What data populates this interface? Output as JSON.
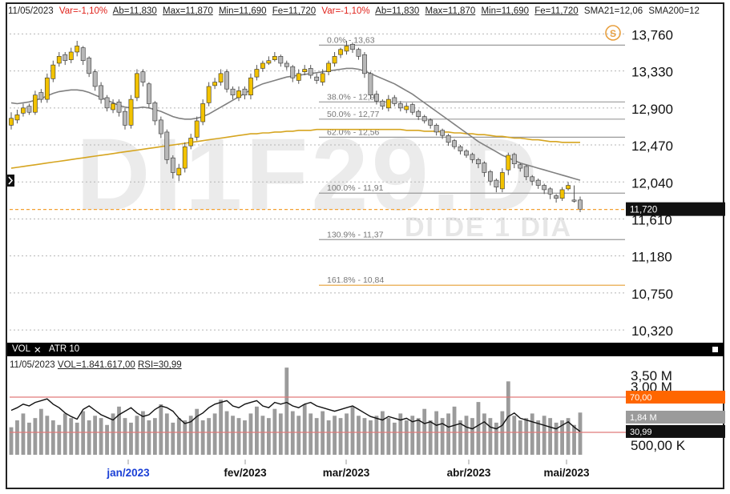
{
  "header": {
    "date": "11/05/2023",
    "var1": "Var=-1,10%",
    "ab1": "Ab=11,830",
    "max1": "Max=11,870",
    "min1": "Min=11,690",
    "fe1": "Fe=11,720",
    "var2": "Var=-1,10%",
    "ab2": "Ab=11,830",
    "max2": "Max=11,870",
    "min2": "Min=11,690",
    "fe2": "Fe=11,720",
    "sma21": "SMA21=12,06",
    "sma200": "SMA200=12"
  },
  "watermark": {
    "symbol": "DI1F29.D",
    "subtitle": "DI DE 1 DIA"
  },
  "colors": {
    "up": "#f2c200",
    "down": "#b8b8b8",
    "sma21": "#808080",
    "sma200": "#d6a520",
    "last_price": "#f3a132",
    "overbought": "#ff6600",
    "oversold_line": "#e07a7a"
  },
  "sub_panel": {
    "tab_vol": "VOL",
    "tab_close": "✕",
    "tab_atr": "ATR 10",
    "info_date": "11/05/2023",
    "info_vol": "VOL=1.841.617,00",
    "info_rsi": "RSI=30,99"
  },
  "chart_data": [
    {
      "type": "candlestick",
      "y_ticks": [
        "13,760",
        "13,330",
        "12,900",
        "12,470",
        "12,040",
        "11,610",
        "11,180",
        "10,750",
        "10,320"
      ],
      "ylim": [
        10.2,
        13.95
      ],
      "last_price_label": "11,720",
      "x_labels": [
        "jan/2023",
        "fev/2023",
        "mar/2023",
        "abr/2023",
        "mai/2023"
      ],
      "fibonacci": [
        {
          "label": "0.0% - 13,63",
          "value": 13.63
        },
        {
          "label": "38.0% - 12,97",
          "value": 12.97
        },
        {
          "label": "50.0% - 12,77",
          "value": 12.77
        },
        {
          "label": "62.0% - 12,56",
          "value": 12.56
        },
        {
          "label": "100.0% - 11,91",
          "value": 11.91
        },
        {
          "label": "130.9% - 11,37",
          "value": 11.37
        },
        {
          "label": "161.8% - 10,84",
          "value": 10.84
        }
      ],
      "close": [
        12.78,
        12.82,
        12.9,
        12.85,
        13.05,
        13.0,
        13.25,
        13.4,
        13.5,
        13.45,
        13.55,
        13.62,
        13.45,
        13.3,
        13.15,
        13.0,
        12.9,
        12.95,
        12.85,
        12.7,
        13.0,
        13.3,
        13.2,
        12.95,
        12.75,
        12.6,
        12.3,
        12.15,
        12.2,
        12.45,
        12.55,
        12.75,
        12.95,
        13.15,
        13.2,
        13.3,
        13.12,
        13.05,
        13.1,
        13.05,
        13.25,
        13.35,
        13.42,
        13.45,
        13.5,
        13.42,
        13.38,
        13.25,
        13.3,
        13.35,
        13.28,
        13.22,
        13.3,
        13.42,
        13.5,
        13.58,
        13.62,
        13.58,
        13.5,
        13.3,
        13.05,
        12.98,
        12.92,
        13.0,
        12.95,
        12.9,
        12.92,
        12.85,
        12.8,
        12.75,
        12.7,
        12.62,
        12.58,
        12.5,
        12.45,
        12.4,
        12.35,
        12.3,
        12.25,
        12.15,
        12.05,
        11.98,
        12.15,
        12.35,
        12.25,
        12.2,
        12.1,
        12.05,
        12.0,
        11.95,
        11.9,
        11.85,
        11.95,
        12.0,
        11.82,
        11.72
      ],
      "open": [
        12.7,
        12.76,
        12.84,
        12.92,
        12.85,
        13.08,
        13.0,
        13.24,
        13.42,
        13.52,
        13.46,
        13.55,
        13.6,
        13.48,
        13.32,
        13.16,
        13.02,
        12.88,
        12.97,
        12.86,
        12.7,
        13.02,
        13.32,
        13.18,
        12.96,
        12.76,
        12.62,
        12.32,
        12.12,
        12.2,
        12.46,
        12.56,
        12.74,
        12.96,
        13.16,
        13.2,
        13.32,
        13.12,
        13.02,
        13.12,
        13.05,
        13.26,
        13.36,
        13.42,
        13.46,
        13.5,
        13.42,
        13.38,
        13.22,
        13.32,
        13.36,
        13.26,
        13.2,
        13.32,
        13.42,
        13.52,
        13.56,
        13.64,
        13.58,
        13.52,
        13.3,
        13.06,
        12.98,
        12.9,
        13.02,
        12.95,
        12.88,
        12.94,
        12.86,
        12.8,
        12.76,
        12.7,
        12.64,
        12.58,
        12.52,
        12.45,
        12.4,
        12.36,
        12.3,
        12.26,
        12.16,
        12.06,
        11.96,
        12.18,
        12.36,
        12.24,
        12.22,
        12.1,
        12.06,
        12.0,
        11.96,
        11.88,
        11.85,
        11.96,
        11.83,
        11.83
      ],
      "high": [
        12.85,
        12.88,
        12.95,
        12.95,
        13.1,
        13.12,
        13.3,
        13.45,
        13.55,
        13.55,
        13.6,
        13.68,
        13.62,
        13.5,
        13.35,
        13.2,
        13.05,
        13.0,
        13.0,
        12.9,
        13.05,
        13.35,
        13.35,
        13.2,
        12.98,
        12.8,
        12.65,
        12.35,
        12.25,
        12.5,
        12.6,
        12.8,
        13.0,
        13.2,
        13.25,
        13.35,
        13.35,
        13.15,
        13.15,
        13.15,
        13.3,
        13.4,
        13.45,
        13.5,
        13.55,
        13.52,
        13.45,
        13.4,
        13.35,
        13.4,
        13.4,
        13.3,
        13.35,
        13.45,
        13.55,
        13.6,
        13.68,
        13.66,
        13.6,
        13.55,
        13.32,
        13.1,
        13.0,
        13.05,
        13.05,
        12.98,
        12.96,
        12.96,
        12.88,
        12.82,
        12.78,
        12.72,
        12.66,
        12.6,
        12.54,
        12.47,
        12.42,
        12.38,
        12.32,
        12.28,
        12.18,
        12.08,
        12.2,
        12.38,
        12.38,
        12.26,
        12.24,
        12.12,
        12.08,
        12.02,
        11.98,
        11.9,
        11.98,
        12.04,
        12.0,
        11.87
      ],
      "low": [
        12.65,
        12.72,
        12.8,
        12.82,
        12.82,
        12.96,
        12.96,
        13.2,
        13.38,
        13.4,
        13.42,
        13.5,
        13.4,
        13.26,
        13.1,
        12.95,
        12.86,
        12.84,
        12.8,
        12.65,
        12.66,
        12.98,
        13.15,
        12.9,
        12.7,
        12.55,
        12.25,
        12.08,
        12.05,
        12.15,
        12.42,
        12.52,
        12.7,
        12.92,
        13.12,
        13.16,
        13.08,
        13.0,
        12.98,
        13.0,
        13.0,
        13.22,
        13.32,
        13.4,
        13.44,
        13.38,
        13.34,
        13.2,
        13.18,
        13.28,
        13.24,
        13.18,
        13.16,
        13.28,
        13.38,
        13.48,
        13.52,
        13.54,
        13.46,
        13.25,
        13.0,
        12.94,
        12.88,
        12.86,
        12.92,
        12.86,
        12.84,
        12.82,
        12.76,
        12.72,
        12.66,
        12.58,
        12.54,
        12.46,
        12.42,
        12.36,
        12.32,
        12.26,
        12.2,
        12.1,
        12.0,
        11.92,
        11.92,
        12.12,
        12.2,
        12.16,
        12.06,
        12.0,
        11.96,
        11.9,
        11.84,
        11.8,
        11.82,
        11.94,
        11.8,
        11.69
      ],
      "sma21": [
        12.96,
        12.95,
        12.96,
        12.97,
        12.99,
        13.01,
        13.04,
        13.07,
        13.09,
        13.1,
        13.11,
        13.11,
        13.1,
        13.08,
        13.05,
        13.02,
        12.99,
        12.96,
        12.93,
        12.91,
        12.9,
        12.9,
        12.91,
        12.9,
        12.88,
        12.86,
        12.83,
        12.8,
        12.78,
        12.77,
        12.77,
        12.78,
        12.8,
        12.83,
        12.87,
        12.91,
        12.95,
        12.99,
        13.03,
        13.07,
        13.11,
        13.15,
        13.18,
        13.2,
        13.22,
        13.24,
        13.26,
        13.27,
        13.28,
        13.29,
        13.3,
        13.31,
        13.32,
        13.33,
        13.34,
        13.35,
        13.36,
        13.36,
        13.35,
        13.33,
        13.3,
        13.27,
        13.24,
        13.21,
        13.18,
        13.14,
        13.1,
        13.06,
        13.01,
        12.96,
        12.91,
        12.86,
        12.81,
        12.76,
        12.71,
        12.66,
        12.61,
        12.56,
        12.51,
        12.47,
        12.43,
        12.39,
        12.35,
        12.32,
        12.29,
        12.26,
        12.24,
        12.22,
        12.2,
        12.18,
        12.16,
        12.14,
        12.12,
        12.1,
        12.08,
        12.06
      ],
      "sma200": [
        12.2,
        12.21,
        12.22,
        12.23,
        12.24,
        12.25,
        12.26,
        12.27,
        12.28,
        12.29,
        12.3,
        12.31,
        12.32,
        12.33,
        12.34,
        12.35,
        12.36,
        12.37,
        12.38,
        12.39,
        12.4,
        12.41,
        12.42,
        12.43,
        12.44,
        12.45,
        12.46,
        12.47,
        12.48,
        12.49,
        12.5,
        12.51,
        12.52,
        12.53,
        12.54,
        12.55,
        12.56,
        12.57,
        12.58,
        12.59,
        12.6,
        12.6,
        12.61,
        12.61,
        12.62,
        12.62,
        12.63,
        12.63,
        12.64,
        12.64,
        12.64,
        12.65,
        12.65,
        12.65,
        12.65,
        12.65,
        12.65,
        12.65,
        12.65,
        12.65,
        12.65,
        12.65,
        12.65,
        12.65,
        12.65,
        12.65,
        12.64,
        12.64,
        12.64,
        12.63,
        12.63,
        12.63,
        12.62,
        12.62,
        12.61,
        12.61,
        12.6,
        12.6,
        12.59,
        12.59,
        12.58,
        12.57,
        12.57,
        12.56,
        12.55,
        12.55,
        12.54,
        12.53,
        12.53,
        12.52,
        12.51,
        12.51,
        12.5,
        12.5,
        12.5,
        12.5
      ]
    },
    {
      "type": "bar",
      "y_ticks": [
        "3,50 M",
        "3,00 M",
        "500,00 K"
      ],
      "ylim": [
        0,
        3.7
      ],
      "labels": {
        "overbought": "70,00",
        "volume": "1,84 M",
        "rsi": "30,99"
      },
      "volume_millions": [
        1.2,
        1.5,
        1.8,
        1.4,
        1.6,
        2.0,
        1.7,
        1.5,
        1.3,
        1.8,
        1.6,
        1.4,
        1.9,
        1.5,
        1.7,
        1.6,
        1.3,
        1.8,
        2.1,
        1.6,
        1.4,
        1.7,
        1.9,
        1.5,
        1.6,
        2.2,
        1.8,
        1.4,
        1.6,
        1.5,
        1.7,
        2.0,
        1.5,
        1.6,
        1.8,
        2.4,
        1.9,
        1.7,
        1.6,
        1.5,
        1.8,
        2.1,
        1.7,
        1.6,
        2.0,
        1.8,
        3.8,
        1.9,
        1.7,
        2.2,
        1.8,
        1.6,
        1.9,
        1.5,
        1.7,
        1.6,
        1.8,
        2.1,
        1.7,
        1.6,
        1.5,
        1.7,
        1.9,
        1.6,
        1.4,
        1.8,
        1.5,
        1.7,
        1.6,
        2.0,
        1.5,
        1.9,
        1.6,
        1.8,
        2.1,
        1.5,
        1.7,
        1.6,
        2.3,
        1.8,
        1.6,
        1.4,
        1.9,
        3.2,
        1.7,
        1.5,
        1.6,
        1.8,
        1.5,
        1.7,
        1.6,
        1.4,
        1.5,
        1.6,
        1.3,
        1.84
      ],
      "rsi": [
        55,
        58,
        62,
        60,
        64,
        66,
        68,
        62,
        58,
        52,
        48,
        45,
        56,
        60,
        55,
        50,
        47,
        44,
        50,
        54,
        58,
        52,
        48,
        50,
        56,
        60,
        58,
        54,
        46,
        40,
        42,
        48,
        52,
        58,
        62,
        64,
        66,
        60,
        58,
        62,
        64,
        66,
        60,
        58,
        64,
        62,
        64,
        60,
        58,
        62,
        64,
        60,
        58,
        56,
        54,
        56,
        58,
        60,
        56,
        52,
        48,
        46,
        44,
        48,
        46,
        44,
        46,
        42,
        44,
        40,
        42,
        38,
        40,
        36,
        38,
        40,
        36,
        34,
        38,
        42,
        36,
        34,
        38,
        48,
        52,
        46,
        44,
        42,
        40,
        38,
        36,
        34,
        38,
        42,
        36,
        31
      ]
    }
  ]
}
